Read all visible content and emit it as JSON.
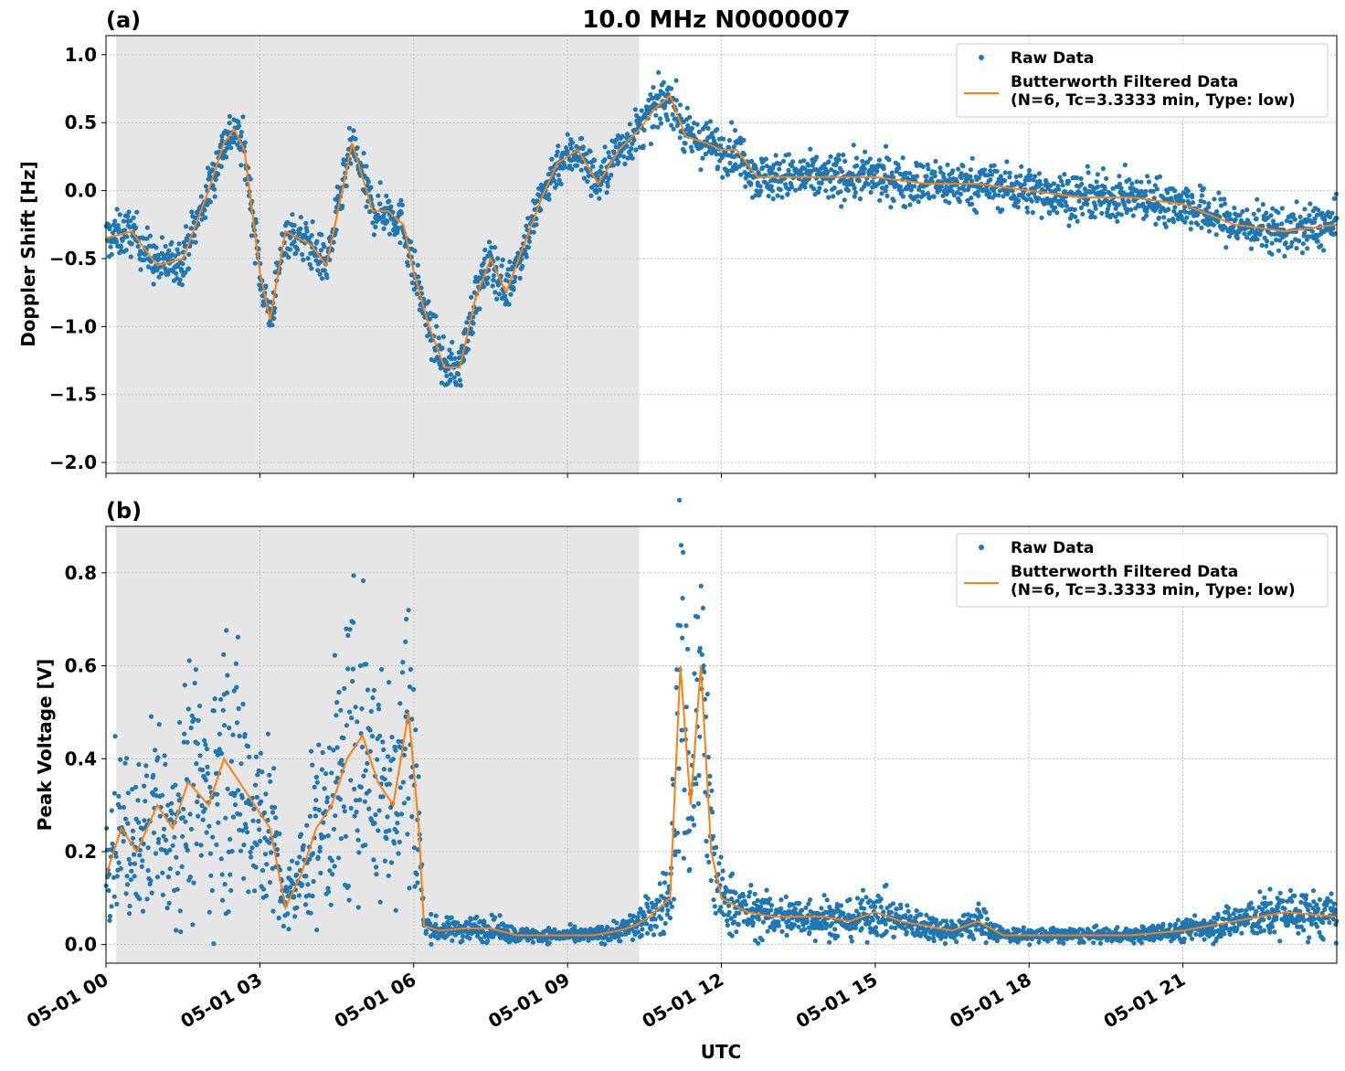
{
  "figure_title": "10.0 MHz N0000007",
  "chart_data": [
    {
      "type": "line",
      "panel_label": "(a)",
      "ylabel": "Doppler Shift [Hz]",
      "xlabel": "",
      "ylim": [
        -2.08,
        1.14
      ],
      "yticks": [
        {
          "v": -2.0,
          "label": "−2.0"
        },
        {
          "v": -1.5,
          "label": "−1.5"
        },
        {
          "v": -1.0,
          "label": "−1.0"
        },
        {
          "v": -0.5,
          "label": "−0.5"
        },
        {
          "v": 0.0,
          "label": "0.0"
        },
        {
          "v": 0.5,
          "label": "0.5"
        },
        {
          "v": 1.0,
          "label": "1.0"
        }
      ],
      "grid": true,
      "legend_position": "top-right",
      "night_shading_hours": [
        0.2,
        10.4
      ],
      "series": [
        {
          "name": "Raw Data",
          "style": "scatter",
          "color": "#1f77b4"
        },
        {
          "name": "Butterworth Filtered Data\n(N=6, Tc=3.3333 min, Type: low)",
          "style": "line",
          "color": "#ff7f0e"
        }
      ],
      "filtered_x_hours": [
        0,
        0.5,
        1,
        1.5,
        2,
        2.3,
        2.5,
        2.7,
        3,
        3.2,
        3.5,
        4,
        4.3,
        4.8,
        5.2,
        5.5,
        5.8,
        6,
        6.3,
        6.6,
        6.9,
        7.2,
        7.5,
        7.8,
        8.2,
        8.5,
        8.8,
        9.2,
        9.6,
        10,
        10.4,
        10.7,
        11,
        11.3,
        11.7,
        12,
        12.3,
        12.7,
        13,
        14,
        15,
        16,
        17,
        18,
        19,
        20,
        21,
        22,
        23,
        24
      ],
      "filtered_y": [
        -0.35,
        -0.3,
        -0.55,
        -0.5,
        0,
        0.35,
        0.45,
        0.3,
        -0.6,
        -0.95,
        -0.3,
        -0.4,
        -0.55,
        0.35,
        -0.15,
        -0.15,
        -0.25,
        -0.6,
        -1.0,
        -1.3,
        -1.3,
        -0.8,
        -0.5,
        -0.75,
        -0.35,
        -0.05,
        0.2,
        0.3,
        0.05,
        0.3,
        0.45,
        0.6,
        0.7,
        0.4,
        0.35,
        0.3,
        0.3,
        0.1,
        0.1,
        0.1,
        0.1,
        0.05,
        0.05,
        0,
        -0.05,
        -0.05,
        -0.1,
        -0.25,
        -0.3,
        -0.25
      ]
    },
    {
      "type": "line",
      "panel_label": "(b)",
      "ylabel": "Peak Voltage [V]",
      "xlabel": "UTC",
      "ylim": [
        -0.04,
        0.9
      ],
      "yticks": [
        {
          "v": 0.0,
          "label": "0.0"
        },
        {
          "v": 0.2,
          "label": "0.2"
        },
        {
          "v": 0.4,
          "label": "0.4"
        },
        {
          "v": 0.6,
          "label": "0.6"
        },
        {
          "v": 0.8,
          "label": "0.8"
        }
      ],
      "xticks": [
        {
          "h": 0,
          "label": "05-01 00"
        },
        {
          "h": 3,
          "label": "05-01 03"
        },
        {
          "h": 6,
          "label": "05-01 06"
        },
        {
          "h": 9,
          "label": "05-01 09"
        },
        {
          "h": 12,
          "label": "05-01 12"
        },
        {
          "h": 15,
          "label": "05-01 15"
        },
        {
          "h": 18,
          "label": "05-01 18"
        },
        {
          "h": 21,
          "label": "05-01 21"
        }
      ],
      "xlim_hours": [
        0,
        24
      ],
      "grid": true,
      "legend_position": "top-right",
      "night_shading_hours": [
        0.2,
        10.4
      ],
      "series": [
        {
          "name": "Raw Data",
          "style": "scatter",
          "color": "#1f77b4"
        },
        {
          "name": "Butterworth Filtered Data\n(N=6, Tc=3.3333 min, Type: low)",
          "style": "line",
          "color": "#ff7f0e"
        }
      ],
      "filtered_x_hours": [
        0,
        0.3,
        0.6,
        1,
        1.3,
        1.6,
        2,
        2.3,
        2.6,
        2.9,
        3.2,
        3.5,
        3.8,
        4.1,
        4.4,
        4.7,
        5,
        5.3,
        5.6,
        5.9,
        6.1,
        6.2,
        6.5,
        7,
        7.5,
        8,
        8.5,
        9,
        9.5,
        10,
        10.3,
        10.6,
        11,
        11.2,
        11.4,
        11.6,
        11.8,
        12,
        12.5,
        13,
        14,
        14.5,
        15,
        15.5,
        16,
        16.5,
        17,
        17.5,
        18,
        19,
        20,
        21,
        22,
        23,
        24
      ],
      "filtered_y": [
        0.15,
        0.25,
        0.2,
        0.3,
        0.25,
        0.35,
        0.3,
        0.4,
        0.35,
        0.3,
        0.25,
        0.08,
        0.15,
        0.25,
        0.3,
        0.4,
        0.45,
        0.35,
        0.3,
        0.5,
        0.25,
        0.04,
        0.03,
        0.035,
        0.035,
        0.02,
        0.02,
        0.02,
        0.02,
        0.03,
        0.04,
        0.06,
        0.1,
        0.6,
        0.3,
        0.6,
        0.2,
        0.1,
        0.07,
        0.06,
        0.06,
        0.05,
        0.07,
        0.05,
        0.04,
        0.03,
        0.05,
        0.02,
        0.02,
        0.02,
        0.02,
        0.03,
        0.05,
        0.07,
        0.06
      ]
    }
  ]
}
